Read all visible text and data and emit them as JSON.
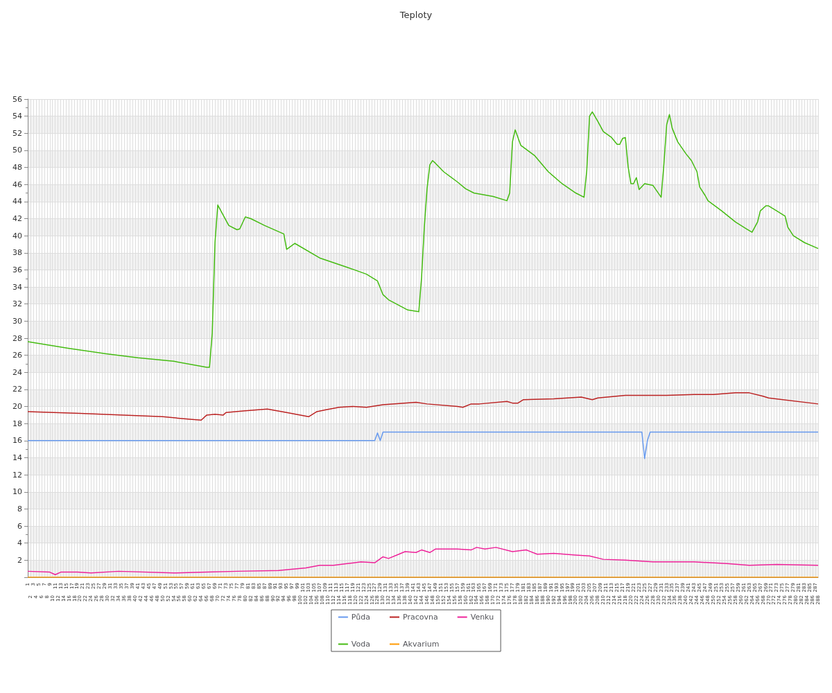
{
  "chart_data": {
    "type": "line",
    "title": "Teploty",
    "categories": [
      "1",
      "2",
      "3",
      "4",
      "5",
      "6",
      "7",
      "8",
      "9",
      "10",
      "11",
      "12",
      "13",
      "14",
      "15",
      "16",
      "17",
      "18",
      "19",
      "20",
      "21",
      "22",
      "23",
      "24",
      "25",
      "26",
      "27",
      "28",
      "29",
      "30",
      "31",
      "32",
      "33",
      "34",
      "35",
      "36",
      "37",
      "38",
      "39",
      "40",
      "41",
      "42",
      "43",
      "44",
      "45",
      "46",
      "47",
      "48",
      "49",
      "50",
      "51",
      "52",
      "53",
      "54",
      "55",
      "56",
      "57",
      "58",
      "59",
      "60",
      "61",
      "62",
      "63",
      "64",
      "65",
      "66",
      "67",
      "68",
      "69",
      "70",
      "71",
      "72",
      "73",
      "74",
      "75",
      "76",
      "77",
      "78",
      "79",
      "80",
      "81",
      "82",
      "83",
      "84",
      "85",
      "86",
      "87",
      "88",
      "89",
      "90",
      "91",
      "92",
      "93",
      "94",
      "95",
      "96",
      "97",
      "98",
      "99",
      "100",
      "101",
      "102",
      "103",
      "104",
      "105",
      "106",
      "107",
      "108",
      "109",
      "110",
      "111",
      "112",
      "113",
      "114",
      "115",
      "116",
      "117",
      "118",
      "119",
      "120",
      "121",
      "122",
      "123",
      "124",
      "125",
      "126",
      "127",
      "128",
      "129",
      "130",
      "131",
      "132",
      "133",
      "134",
      "135",
      "136",
      "137",
      "138",
      "139",
      "140",
      "141",
      "142",
      "143",
      "144",
      "145",
      "146",
      "147",
      "148",
      "149",
      "150",
      "151",
      "152",
      "153",
      "154",
      "155",
      "156",
      "157",
      "158",
      "159",
      "160",
      "161",
      "162",
      "163",
      "164",
      "165",
      "166",
      "167",
      "168",
      "169",
      "170",
      "171",
      "172",
      "173",
      "174",
      "175",
      "176",
      "177",
      "178",
      "179",
      "180",
      "181",
      "182",
      "183",
      "184",
      "185",
      "186",
      "187",
      "188",
      "189",
      "190",
      "191",
      "192",
      "193",
      "194",
      "195",
      "196",
      "197",
      "198",
      "199",
      "200",
      "201",
      "202",
      "203",
      "204",
      "205",
      "206",
      "207",
      "208",
      "209",
      "210",
      "211",
      "212",
      "213",
      "214",
      "215",
      "216",
      "217",
      "218",
      "219",
      "220",
      "221",
      "222",
      "223",
      "224",
      "225",
      "226",
      "227",
      "228",
      "229",
      "230",
      "231",
      "232",
      "233",
      "234",
      "235",
      "236",
      "237",
      "238",
      "239",
      "240",
      "241",
      "242",
      "243",
      "244",
      "245",
      "246",
      "247",
      "248",
      "249",
      "250",
      "251",
      "252",
      "253",
      "254",
      "255",
      "256",
      "257",
      "258",
      "259",
      "260",
      "261",
      "262",
      "263",
      "264",
      "265",
      "266",
      "267",
      "268",
      "269",
      "270",
      "271",
      "272",
      "273",
      "274",
      "275",
      "276",
      "277",
      "278",
      "279",
      "280",
      "281",
      "282",
      "283",
      "284",
      "285",
      "286",
      "287",
      "288"
    ],
    "series": [
      {
        "name": "Půda",
        "color": "#6699ee",
        "x": [
          "1",
          "127",
          "128",
          "129",
          "130",
          "224",
          "225",
          "226",
          "227",
          "288"
        ],
        "values": [
          16.0,
          16.0,
          16.9,
          16.0,
          17.0,
          17.0,
          13.9,
          16.0,
          17.0,
          17.0
        ]
      },
      {
        "name": "Pracovna",
        "color": "#bb2222",
        "x": [
          "1",
          "20",
          "50",
          "60",
          "64",
          "66",
          "69",
          "72",
          "73",
          "80",
          "88",
          "95",
          "100",
          "103",
          "106",
          "109",
          "114",
          "119",
          "124",
          "130",
          "142",
          "146",
          "157",
          "159",
          "162",
          "165",
          "175",
          "177",
          "179",
          "181",
          "192",
          "202",
          "206",
          "208",
          "218",
          "223",
          "233",
          "243",
          "250",
          "258",
          "263",
          "268",
          "270",
          "288"
        ],
        "values": [
          19.4,
          19.2,
          18.8,
          18.5,
          18.4,
          19.0,
          19.1,
          19.0,
          19.3,
          19.5,
          19.7,
          19.3,
          19.0,
          18.8,
          19.4,
          19.6,
          19.9,
          20.0,
          19.9,
          20.2,
          20.5,
          20.3,
          20.0,
          19.9,
          20.3,
          20.3,
          20.6,
          20.4,
          20.4,
          20.8,
          20.9,
          21.1,
          20.8,
          21.0,
          21.3,
          21.3,
          21.3,
          21.4,
          21.4,
          21.6,
          21.6,
          21.2,
          21.0,
          20.3
        ]
      },
      {
        "name": "Venku",
        "color": "#ee2299",
        "x": [
          "1",
          "9",
          "11",
          "13",
          "19",
          "24",
          "34",
          "54",
          "66",
          "77",
          "92",
          "102",
          "107",
          "112",
          "117",
          "122",
          "127",
          "130",
          "132",
          "135",
          "138",
          "142",
          "144",
          "147",
          "149",
          "157",
          "162",
          "164",
          "167",
          "171",
          "177",
          "182",
          "186",
          "192",
          "200",
          "205",
          "210",
          "218",
          "228",
          "243",
          "255",
          "263",
          "273",
          "288"
        ],
        "values": [
          0.7,
          0.6,
          0.3,
          0.6,
          0.6,
          0.5,
          0.7,
          0.5,
          0.6,
          0.7,
          0.8,
          1.1,
          1.4,
          1.4,
          1.6,
          1.8,
          1.7,
          2.4,
          2.2,
          2.6,
          3.0,
          2.9,
          3.2,
          2.9,
          3.3,
          3.3,
          3.2,
          3.5,
          3.3,
          3.5,
          3.0,
          3.2,
          2.7,
          2.8,
          2.6,
          2.5,
          2.1,
          2.0,
          1.8,
          1.8,
          1.6,
          1.4,
          1.5,
          1.4
        ]
      },
      {
        "name": "Voda",
        "color": "#44bb11",
        "x": [
          "1",
          "16",
          "29",
          "41",
          "54",
          "66",
          "67",
          "68",
          "69",
          "70",
          "74",
          "77",
          "78",
          "80",
          "82",
          "87",
          "94",
          "95",
          "98",
          "107",
          "117",
          "124",
          "128",
          "130",
          "132",
          "139",
          "143",
          "144",
          "145",
          "146",
          "147",
          "148",
          "149",
          "152",
          "157",
          "160",
          "163",
          "170",
          "175",
          "176",
          "177",
          "178",
          "180",
          "185",
          "190",
          "195",
          "200",
          "203",
          "204",
          "205",
          "206",
          "208",
          "210",
          "213",
          "215",
          "216",
          "217",
          "218",
          "219",
          "220",
          "221",
          "222",
          "223",
          "225",
          "228",
          "231",
          "232",
          "233",
          "234",
          "235",
          "237",
          "240",
          "242",
          "244",
          "245",
          "247",
          "248",
          "253",
          "258",
          "262",
          "264",
          "266",
          "267",
          "269",
          "270",
          "273",
          "276",
          "277",
          "279",
          "283",
          "288"
        ],
        "values": [
          27.6,
          26.8,
          26.2,
          25.7,
          25.3,
          24.6,
          24.6,
          28.6,
          39.2,
          43.6,
          41.2,
          40.7,
          40.8,
          42.2,
          42.0,
          41.2,
          40.2,
          38.4,
          39.1,
          37.4,
          36.3,
          35.5,
          34.7,
          33.1,
          32.5,
          31.3,
          31.1,
          35.1,
          41.0,
          45.5,
          48.3,
          48.8,
          48.5,
          47.5,
          46.3,
          45.5,
          45.0,
          44.6,
          44.1,
          45.0,
          51.0,
          52.4,
          50.6,
          49.4,
          47.5,
          46.1,
          45.0,
          44.5,
          47.7,
          54.0,
          54.5,
          53.4,
          52.2,
          51.5,
          50.7,
          50.7,
          51.4,
          51.5,
          48.1,
          46.1,
          46.1,
          46.8,
          45.4,
          46.1,
          45.9,
          44.5,
          48.4,
          53.0,
          54.2,
          52.6,
          51.0,
          49.6,
          48.8,
          47.5,
          45.7,
          44.7,
          44.1,
          42.9,
          41.6,
          40.8,
          40.4,
          41.6,
          42.9,
          43.5,
          43.5,
          42.9,
          42.3,
          41.0,
          40.0,
          39.2,
          38.5
        ]
      },
      {
        "name": "Akvarium",
        "color": "#ff9900",
        "x": [
          "1",
          "288"
        ],
        "values": [
          0,
          0
        ]
      }
    ],
    "ylim": [
      0,
      56
    ],
    "yticks": [
      {
        "value": 0,
        "label": null
      },
      2,
      4,
      6,
      8,
      10,
      12,
      14,
      16,
      18,
      20,
      22,
      24,
      26,
      28,
      30,
      32,
      34,
      36,
      38,
      40,
      42,
      44,
      46,
      48,
      50,
      52,
      54,
      56
    ],
    "grid": true,
    "legend": "bottom",
    "marker": "none",
    "line_style": "solid"
  }
}
